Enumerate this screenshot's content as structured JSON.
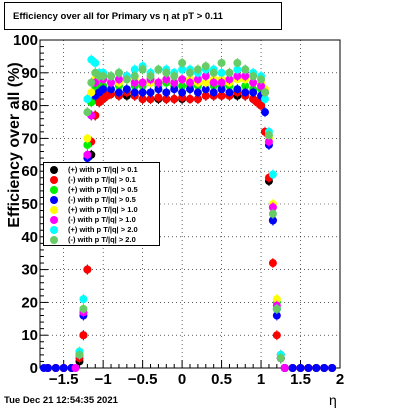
{
  "chart_data": {
    "type": "scatter",
    "title": "Efficiency over all for Primary vs   η at pT > 0.11",
    "xlabel": "η",
    "ylabel": "Efficiency over all (%)",
    "xlim": [
      -1.8,
      2.0
    ],
    "ylim": [
      0,
      100
    ],
    "x_ticks": [
      -1.5,
      -1,
      -0.5,
      0,
      0.5,
      1,
      1.5,
      2
    ],
    "x_tick_labels": [
      "−1.5",
      "−1",
      "−0.5",
      "0",
      "0.5",
      "1",
      "1.5",
      "2"
    ],
    "y_ticks": [
      0,
      10,
      20,
      30,
      40,
      50,
      60,
      70,
      80,
      90,
      100
    ],
    "y_tick_labels": [
      "0",
      "10",
      "20",
      "30",
      "40",
      "50",
      "60",
      "70",
      "80",
      "90",
      "100"
    ],
    "grid": true,
    "legend_position": "left",
    "series": [
      {
        "name": "(+) with p T/|q| > 0.1",
        "color": "#000000",
        "x": [
          -1.7,
          -1.6,
          -1.5,
          -1.4,
          -1.3,
          -1.25,
          -1.2,
          -1.15,
          -1.1,
          -1.05,
          -1.0,
          -0.95,
          -0.9,
          -0.8,
          -0.7,
          -0.6,
          -0.5,
          -0.4,
          -0.3,
          -0.2,
          -0.1,
          0.0,
          0.1,
          0.2,
          0.3,
          0.4,
          0.5,
          0.6,
          0.7,
          0.8,
          0.9,
          0.95,
          1.0,
          1.05,
          1.1,
          1.15,
          1.2,
          1.25,
          1.3,
          1.4,
          1.5,
          1.6,
          1.7,
          1.8,
          1.9
        ],
        "y": [
          0,
          0,
          0,
          0,
          2,
          10,
          30,
          65,
          77,
          81,
          82,
          83,
          83.5,
          83,
          83,
          83,
          82,
          82,
          82,
          82,
          82,
          82,
          82,
          82,
          83,
          83,
          83,
          83,
          83,
          83,
          82,
          81,
          80,
          72,
          57,
          45,
          18,
          3,
          0,
          0,
          0,
          0,
          0,
          0,
          0
        ]
      },
      {
        "name": "(-) with p T/|q| > 0.1",
        "color": "#ff0000",
        "x": [
          -1.7,
          -1.6,
          -1.5,
          -1.4,
          -1.3,
          -1.25,
          -1.2,
          -1.15,
          -1.1,
          -1.05,
          -1.0,
          -0.95,
          -0.9,
          -0.8,
          -0.7,
          -0.6,
          -0.5,
          -0.4,
          -0.3,
          -0.2,
          -0.1,
          0.0,
          0.1,
          0.2,
          0.3,
          0.4,
          0.5,
          0.6,
          0.7,
          0.8,
          0.9,
          0.95,
          1.0,
          1.05,
          1.1,
          1.15,
          1.2,
          1.25,
          1.3,
          1.4,
          1.5,
          1.6,
          1.7,
          1.8,
          1.9
        ],
        "y": [
          0,
          0,
          0,
          0,
          3,
          10,
          30,
          69,
          77,
          81,
          82,
          83,
          83.5,
          83,
          84,
          83,
          82,
          82,
          82.5,
          82,
          82,
          82.5,
          82,
          82,
          83,
          83,
          83,
          83,
          84,
          83,
          82,
          81,
          80,
          72,
          58,
          32,
          10,
          3,
          0,
          0,
          0,
          0,
          0,
          0,
          0
        ]
      },
      {
        "name": "(+) with p T/|q| > 0.5",
        "color": "#00ee00",
        "x": [
          -1.3,
          -1.25,
          -1.2,
          -1.15,
          -1.1,
          -1.05,
          -1.0,
          -0.9,
          -0.8,
          -0.7,
          -0.6,
          -0.5,
          -0.4,
          -0.3,
          -0.2,
          -0.1,
          0.0,
          0.1,
          0.2,
          0.3,
          0.4,
          0.5,
          0.6,
          0.7,
          0.8,
          0.9,
          1.0,
          1.05,
          1.1,
          1.15,
          1.2,
          1.25
        ],
        "y": [
          5,
          17,
          68,
          81,
          85,
          86,
          86,
          87,
          86,
          85,
          86,
          86,
          87,
          86,
          87,
          86,
          86,
          86,
          86,
          87,
          86,
          86,
          86,
          85,
          86,
          85,
          85,
          84,
          70,
          49,
          20,
          4
        ]
      },
      {
        "name": "(-) with p T/|q| > 0.5",
        "color": "#0000ff",
        "x": [
          -1.75,
          -1.7,
          -1.6,
          -1.5,
          -1.4,
          -1.3,
          -1.25,
          -1.2,
          -1.15,
          -1.1,
          -1.05,
          -1.0,
          -0.9,
          -0.8,
          -0.7,
          -0.6,
          -0.5,
          -0.4,
          -0.3,
          -0.2,
          -0.1,
          0.0,
          0.1,
          0.2,
          0.3,
          0.4,
          0.5,
          0.6,
          0.7,
          0.8,
          0.9,
          1.0,
          1.05,
          1.1,
          1.15,
          1.2,
          1.25,
          1.3,
          1.4,
          1.5,
          1.6,
          1.7,
          1.8,
          1.9
        ],
        "y": [
          0,
          0,
          0,
          0,
          0,
          4,
          16,
          64,
          77,
          83,
          84,
          85,
          85,
          84,
          85,
          84,
          84,
          84,
          85,
          84,
          85,
          84,
          85,
          84,
          85,
          84,
          85,
          84,
          85,
          84,
          84,
          83,
          78,
          68,
          45,
          16,
          3,
          0,
          0,
          0,
          0,
          0,
          0,
          0
        ]
      },
      {
        "name": "(+) with p T/|q| > 1.0",
        "color": "#ffff00",
        "x": [
          -1.3,
          -1.25,
          -1.2,
          -1.15,
          -1.1,
          -1.0,
          -0.9,
          -0.8,
          -0.7,
          -0.6,
          -0.5,
          -0.4,
          -0.3,
          -0.2,
          -0.1,
          0.0,
          0.1,
          0.2,
          0.3,
          0.4,
          0.5,
          0.6,
          0.7,
          0.8,
          0.9,
          1.0,
          1.05,
          1.1,
          1.15,
          1.2,
          1.25
        ],
        "y": [
          5,
          18,
          70,
          84,
          88,
          88,
          89,
          87,
          88,
          88,
          87,
          87,
          87,
          88,
          87,
          88,
          88,
          87,
          87,
          88,
          88,
          87,
          88,
          88,
          87,
          87,
          85,
          70,
          50,
          21,
          4
        ]
      },
      {
        "name": "(-) with p T/|q| > 1.0",
        "color": "#ff00ff",
        "x": [
          -1.35,
          -1.3,
          -1.25,
          -1.2,
          -1.15,
          -1.1,
          -1.0,
          -0.9,
          -0.8,
          -0.7,
          -0.6,
          -0.5,
          -0.4,
          -0.3,
          -0.2,
          -0.1,
          0.0,
          0.1,
          0.2,
          0.3,
          0.4,
          0.5,
          0.6,
          0.7,
          0.8,
          0.9,
          1.0,
          1.05,
          1.1,
          1.15,
          1.2,
          1.25,
          1.3
        ],
        "y": [
          0,
          4,
          17,
          65,
          77,
          87,
          88,
          87,
          88,
          89,
          87,
          87,
          88,
          87,
          88,
          87,
          88,
          87,
          88,
          89,
          87,
          87,
          88,
          89,
          89,
          87,
          86,
          84,
          69,
          49,
          19,
          4,
          0
        ]
      },
      {
        "name": "(+) with p T/|q| > 2.0",
        "color": "#00ffff",
        "x": [
          -1.3,
          -1.25,
          -1.2,
          -1.15,
          -1.1,
          -1.05,
          -1.0,
          -0.9,
          -0.8,
          -0.7,
          -0.6,
          -0.5,
          -0.4,
          -0.3,
          -0.2,
          -0.1,
          0.0,
          0.1,
          0.2,
          0.3,
          0.4,
          0.5,
          0.6,
          0.7,
          0.8,
          0.9,
          1.0,
          1.05,
          1.1,
          1.15,
          1.2,
          1.25
        ],
        "y": [
          5,
          21,
          82,
          94,
          93,
          90,
          90,
          89,
          90,
          89,
          91,
          92,
          90,
          91,
          91,
          90,
          91,
          91,
          90,
          91,
          91,
          90,
          90,
          91,
          91,
          90,
          89,
          82,
          72,
          59,
          18,
          4
        ]
      },
      {
        "name": "(-) with p T/|q| > 2.0",
        "color": "#66cc66",
        "x": [
          -1.3,
          -1.25,
          -1.2,
          -1.15,
          -1.1,
          -1.05,
          -1.0,
          -0.9,
          -0.8,
          -0.7,
          -0.6,
          -0.5,
          -0.4,
          -0.3,
          -0.2,
          -0.1,
          0.0,
          0.1,
          0.2,
          0.3,
          0.4,
          0.5,
          0.6,
          0.7,
          0.8,
          0.9,
          1.0,
          1.05,
          1.1,
          1.15,
          1.2,
          1.25
        ],
        "y": [
          4,
          18,
          78,
          87,
          90,
          89,
          89,
          89,
          90,
          88,
          89,
          91,
          89,
          91,
          90,
          89,
          93,
          90,
          91,
          92,
          90,
          93,
          90,
          93,
          91,
          89,
          88,
          84,
          71,
          47,
          18,
          3
        ]
      }
    ]
  },
  "footer": {
    "timestamp": "Tue Dec 21 12:54:35 2021"
  }
}
